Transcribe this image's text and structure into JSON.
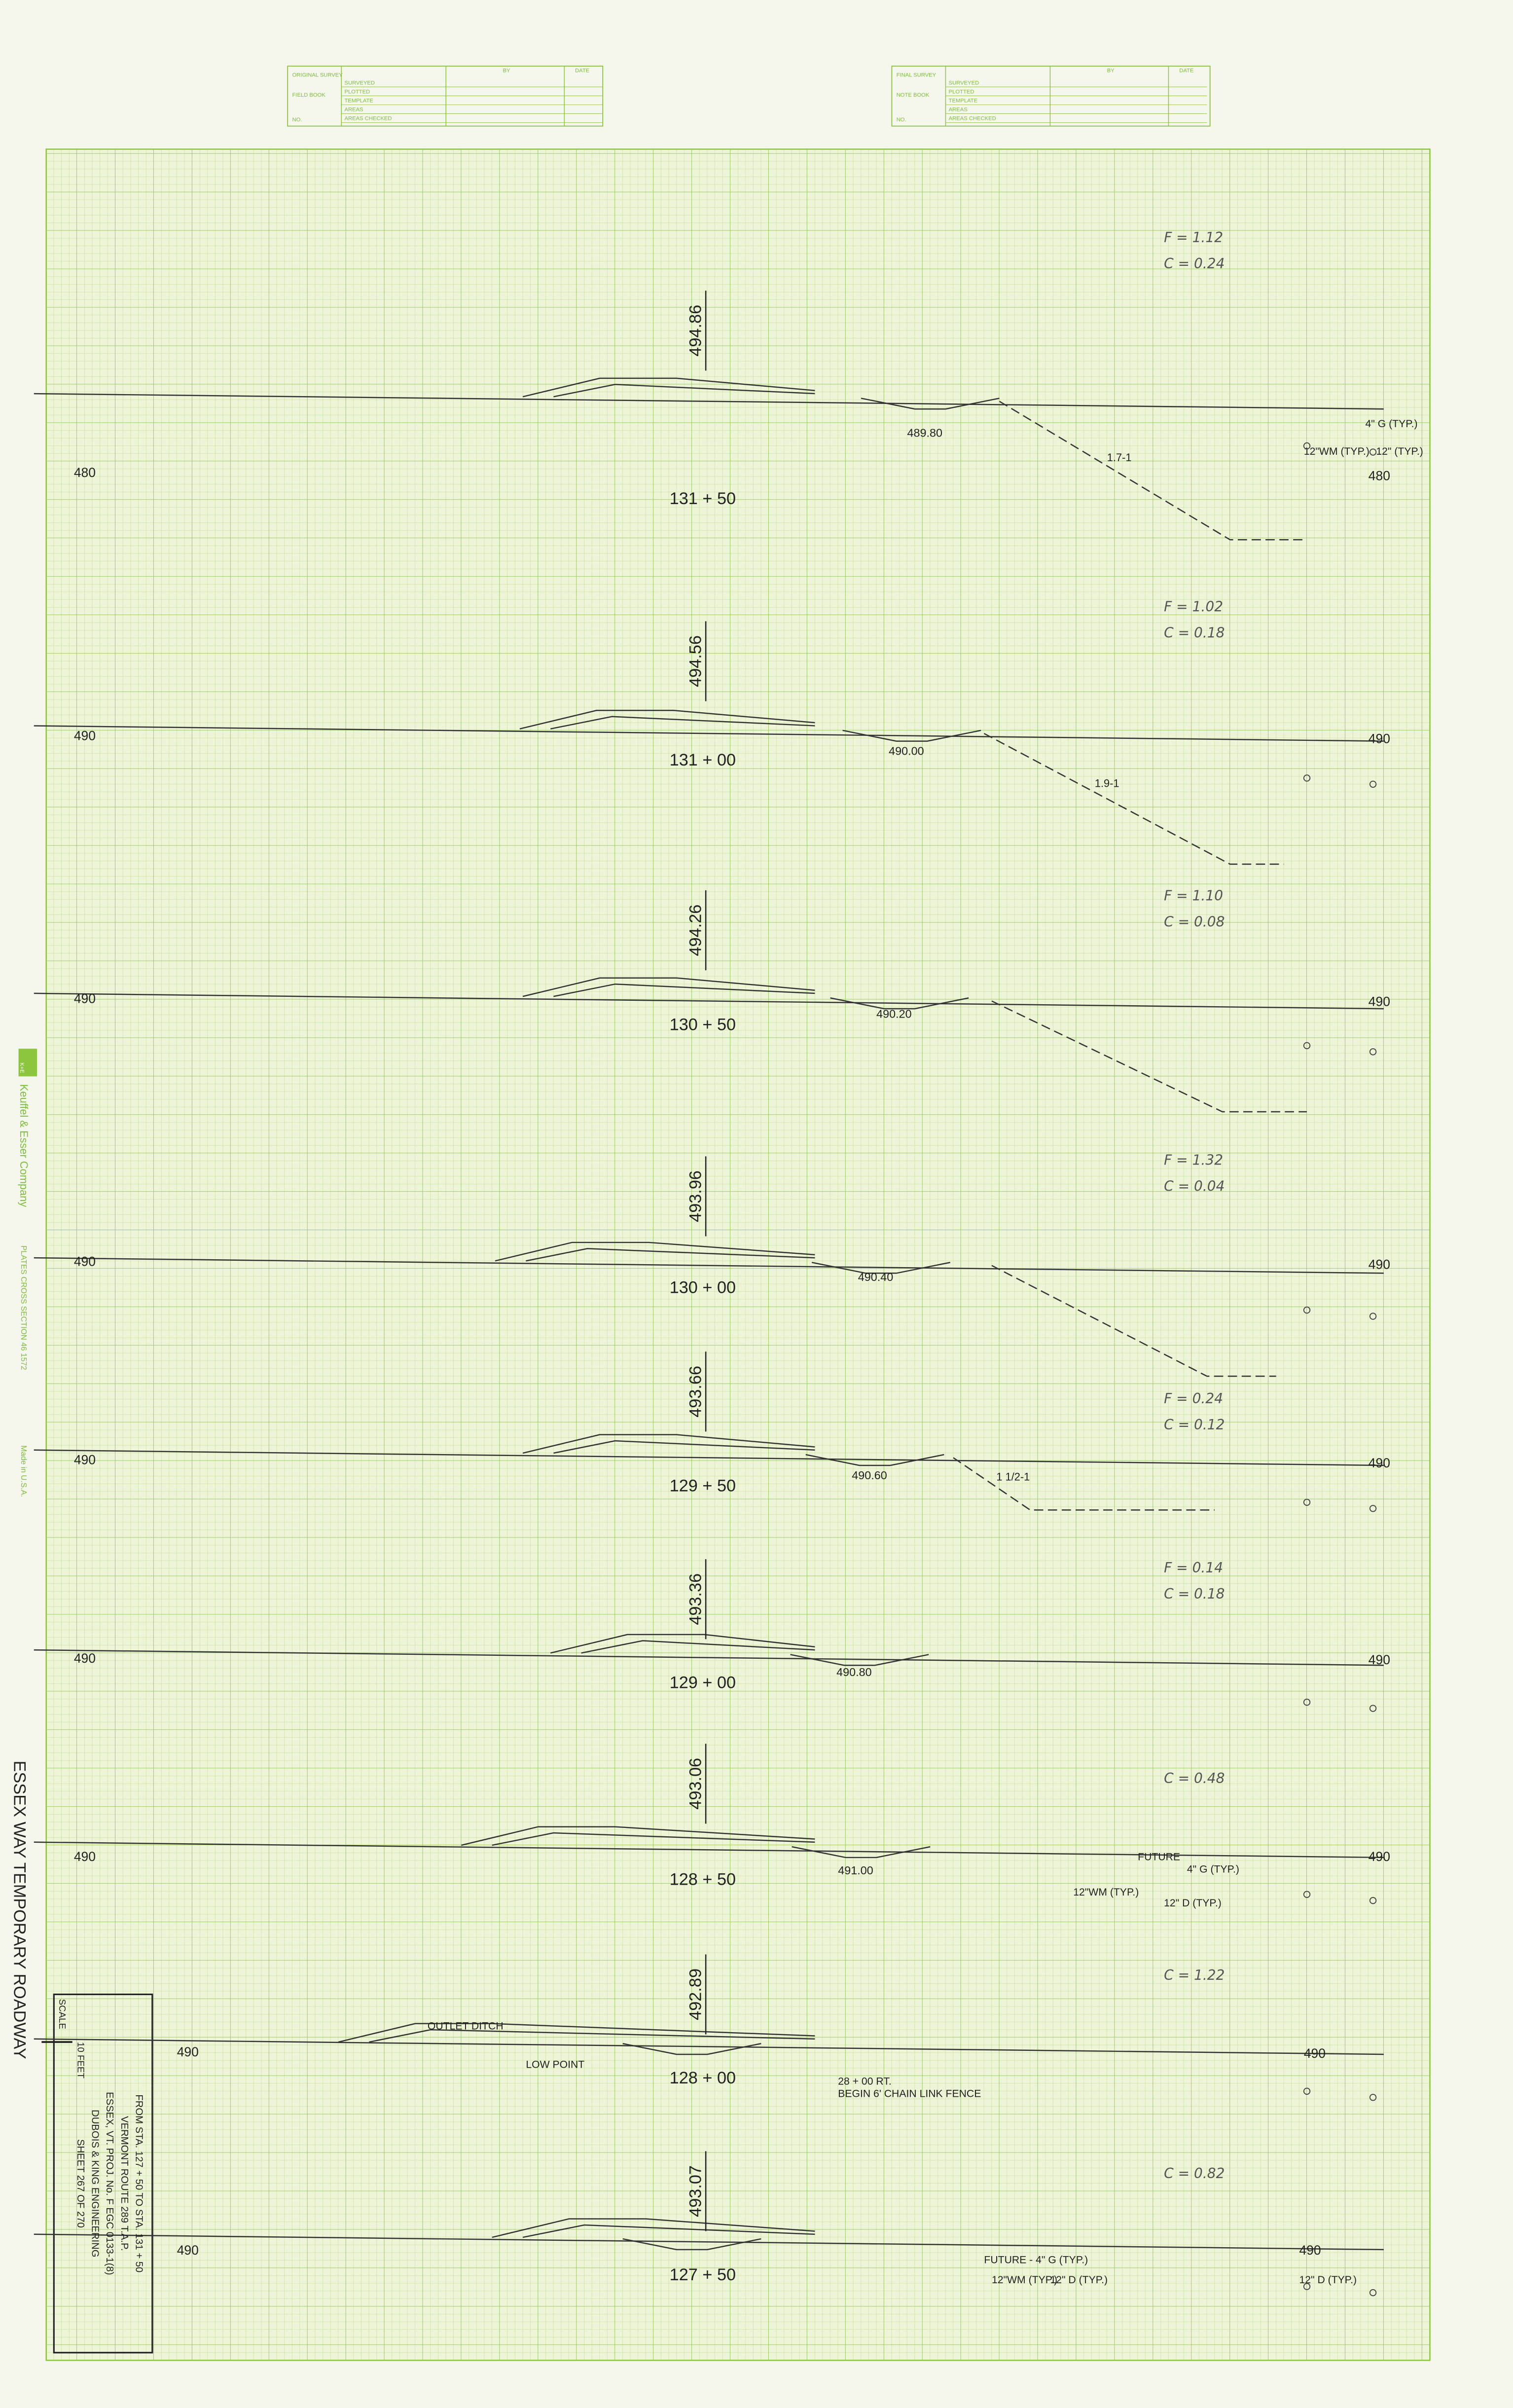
{
  "header": {
    "original": {
      "title": "ORIGINAL SURVEY",
      "book": "FIELD BOOK",
      "no": "NO.",
      "fields": [
        "SURVEYED",
        "PLOTTED",
        "TEMPLATE",
        "AREAS",
        "AREAS CHECKED"
      ],
      "by": "BY",
      "date": "DATE"
    },
    "final": {
      "title": "FINAL SURVEY",
      "book": "NOTE BOOK",
      "no": "NO.",
      "fields": [
        "SURVEYED",
        "PLOTTED",
        "TEMPLATE",
        "AREAS",
        "AREAS CHECKED"
      ],
      "by": "BY",
      "date": "DATE"
    }
  },
  "sections": [
    {
      "station": "131 + 50",
      "elevation": "494.86",
      "f": "F = 1.12",
      "c": "C = 0.24",
      "left": "480",
      "right": "480",
      "low": "489.80",
      "slope": "1.7-1",
      "notes": [
        "4\" G (TYP.)",
        "12\"WM (TYP.)",
        "12\" (TYP.)"
      ]
    },
    {
      "station": "131 + 00",
      "elevation": "494.56",
      "f": "F = 1.02",
      "c": "C = 0.18",
      "left": "490",
      "right": "490",
      "low": "490.00",
      "slope": "1.9-1"
    },
    {
      "station": "130 + 50",
      "elevation": "494.26",
      "f": "F = 1.10",
      "c": "C = 0.08",
      "left": "490",
      "right": "490",
      "low": "490.20"
    },
    {
      "station": "130 + 00",
      "elevation": "493.96",
      "f": "F = 1.32",
      "c": "C = 0.04",
      "left": "490",
      "right": "490",
      "low": "490.40"
    },
    {
      "station": "129 + 50",
      "elevation": "493.66",
      "f": "F = 0.24",
      "c": "C = 0.12",
      "left": "490",
      "right": "490",
      "low": "490.60",
      "slope": "1 1/2-1"
    },
    {
      "station": "129 + 00",
      "elevation": "493.36",
      "f": "F = 0.14",
      "c": "C = 0.18",
      "left": "490",
      "right": "490",
      "low": "490.80"
    },
    {
      "station": "128 + 50",
      "elevation": "493.06",
      "c": "C = 0.48",
      "left": "490",
      "right": "490",
      "low": "491.00",
      "notes": [
        "FUTURE",
        "4\" G (TYP.)",
        "12\"WM (TYP.)",
        "12\" D (TYP.)"
      ]
    },
    {
      "station": "128 + 00",
      "elevation": "492.89",
      "c": "C = 1.22",
      "left": "490",
      "right": "490",
      "notes": [
        "OUTLET DITCH",
        "LOW POINT",
        "28 + 00 RT.",
        "BEGIN 6' CHAIN LINK FENCE"
      ]
    },
    {
      "station": "127 + 50",
      "elevation": "493.07",
      "c": "C = 0.82",
      "left": "490",
      "right": "490",
      "notes": [
        "FUTURE - 4\" G (TYP.)",
        "12\"WM (TYP.)",
        "12\" D (TYP.)",
        "12\" D (TYP.)"
      ]
    }
  ],
  "title": "ESSEX WAY TEMPORARY ROADWAY",
  "logo": "K+E",
  "manufacturer": "Keuffel & Esser Company",
  "plate": "PLATES CROSS SECTION 46 1572",
  "made": "Made in U.S.A.",
  "title_block": {
    "scale": "SCALE",
    "scale_value": "10 FEET",
    "lines": [
      "FROM STA. 127 + 50  TO STA. 131 + 50",
      "VERMONT ROUTE 289 T.A.P.",
      "ESSEX, VT. PROJ. No. F EGC 0133-1(8)",
      "DUBOIS & KING ENGINEERING",
      "SHEET 267 OF 270"
    ]
  }
}
